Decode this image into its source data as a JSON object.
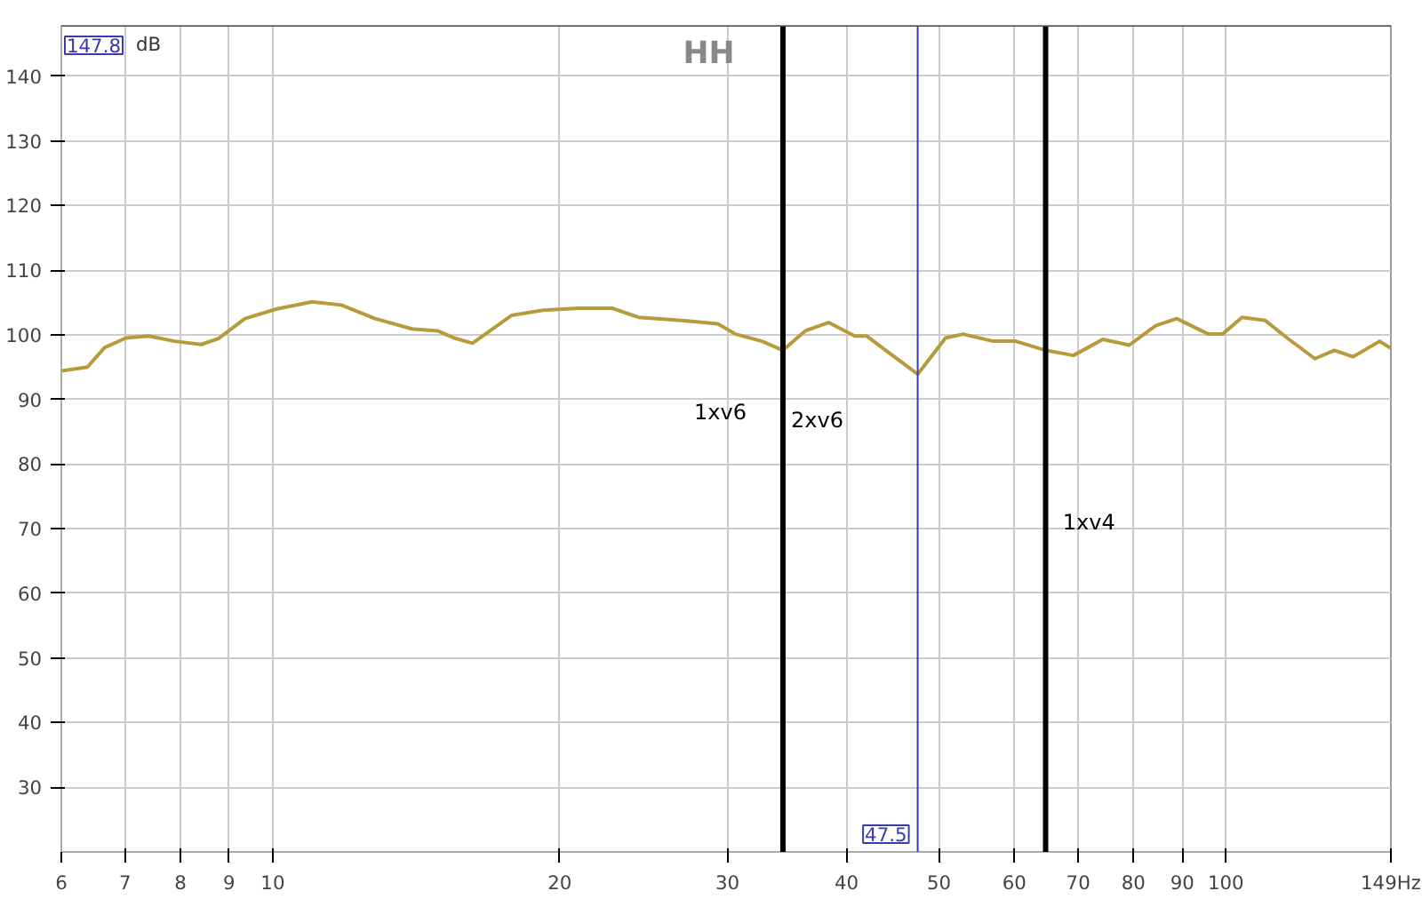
{
  "chart_data": {
    "type": "line",
    "title": "HH",
    "ylabel": "dB",
    "log": "x",
    "grid": true,
    "marker": "none",
    "line_style": "solid",
    "xlim": [
      6,
      149
    ],
    "ylim": [
      20,
      147.8
    ],
    "xticks": [
      6,
      7,
      8,
      9,
      10,
      20,
      30,
      40,
      50,
      60,
      70,
      80,
      90,
      100,
      {
        "value": 149,
        "label": "149Hz"
      }
    ],
    "yticks": [
      30,
      40,
      50,
      60,
      70,
      80,
      90,
      100,
      110,
      120,
      130,
      140
    ],
    "series": [
      {
        "color": "#b89a3c",
        "x": [
          6.0,
          6.39,
          6.66,
          7.01,
          7.41,
          7.89,
          8.41,
          8.77,
          9.35,
          10.1,
          11.0,
          11.8,
          12.8,
          14.0,
          14.9,
          15.5,
          16.2,
          16.9,
          17.8,
          19.2,
          20.9,
          22.7,
          24.2,
          26.9,
          29.3,
          30.6,
          32.6,
          34.3,
          36.2,
          38.3,
          40.8,
          42.0,
          44.7,
          47.5,
          50.8,
          53.0,
          57.0,
          60.2,
          64.7,
          69.2,
          74.3,
          79.2,
          84.4,
          88.8,
          95.9,
          99.2,
          104,
          110,
          116,
          124,
          130,
          136,
          145,
          149
        ],
        "values": [
          94.4,
          95.0,
          98.0,
          99.5,
          99.8,
          99.0,
          98.5,
          99.4,
          102.5,
          104.0,
          105.1,
          104.6,
          102.5,
          100.9,
          100.6,
          99.5,
          98.7,
          100.6,
          103.0,
          103.8,
          104.1,
          104.1,
          102.7,
          102.2,
          101.7,
          100.1,
          99.0,
          97.6,
          100.6,
          101.9,
          99.8,
          99.8,
          96.8,
          93.9,
          99.5,
          100.1,
          99.0,
          99.0,
          97.6,
          96.8,
          99.3,
          98.4,
          101.4,
          102.5,
          100.1,
          100.1,
          102.7,
          102.2,
          99.5,
          96.3,
          97.6,
          96.6,
          99.0,
          97.9
        ]
      }
    ],
    "ref_lines": [
      {
        "axis": "x",
        "value": 34.3,
        "color": "#000000"
      },
      {
        "axis": "x",
        "value": 64.7,
        "color": "#000000"
      },
      {
        "axis": "x",
        "value": 47.5,
        "label": "47.5",
        "color": "#3b3bb0"
      },
      {
        "axis": "y",
        "value": 147.8,
        "label": "147.8",
        "color": "#3b3bb0"
      }
    ],
    "annotations": [
      "1xv6",
      "2xv6",
      "1xv4"
    ]
  }
}
